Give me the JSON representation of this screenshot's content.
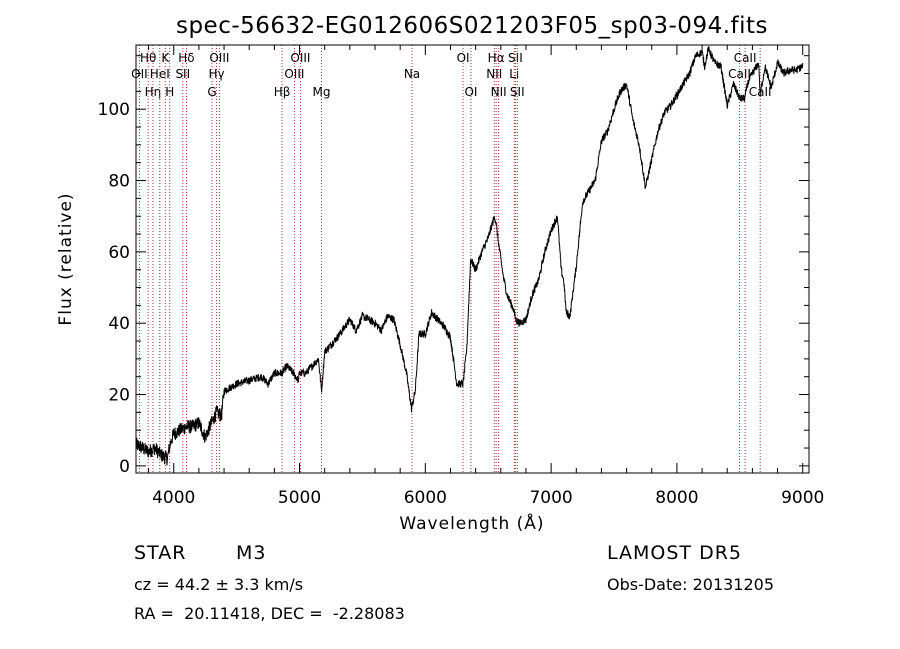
{
  "chart_data": {
    "type": "line",
    "title": "spec-56632-EG012606S021203F05_sp03-094.fits",
    "xlabel": "Wavelength (Å)",
    "ylabel": "Flux (relative)",
    "xlim": [
      3700,
      9050
    ],
    "ylim": [
      -2,
      118
    ],
    "xticks": [
      4000,
      5000,
      6000,
      7000,
      8000,
      9000
    ],
    "yticks": [
      0,
      20,
      40,
      60,
      80,
      100
    ],
    "grid": false,
    "line_color": "#000000",
    "marker_color": "#b03030",
    "series": [
      {
        "x": [
          3700,
          3750,
          3800,
          3850,
          3900,
          3950,
          3970,
          4000,
          4050,
          4100,
          4150,
          4200,
          4250,
          4300,
          4340,
          4380,
          4400,
          4450,
          4500,
          4600,
          4700,
          4750,
          4800,
          4860,
          4900,
          4950,
          4990,
          5000,
          5050,
          5100,
          5150,
          5175,
          5200,
          5300,
          5400,
          5450,
          5500,
          5600,
          5650,
          5700,
          5750,
          5800,
          5850,
          5890,
          5920,
          5950,
          6000,
          6050,
          6100,
          6150,
          6200,
          6250,
          6300,
          6330,
          6360,
          6400,
          6450,
          6500,
          6550,
          6563,
          6580,
          6620,
          6650,
          6700,
          6720,
          6750,
          6800,
          6850,
          6900,
          6950,
          7000,
          7050,
          7080,
          7100,
          7120,
          7150,
          7200,
          7250,
          7300,
          7350,
          7400,
          7450,
          7500,
          7550,
          7600,
          7620,
          7650,
          7700,
          7750,
          7800,
          7850,
          7900,
          7950,
          8000,
          8050,
          8100,
          8150,
          8200,
          8220,
          8250,
          8300,
          8350,
          8400,
          8450,
          8500,
          8540,
          8560,
          8600,
          8650,
          8662,
          8700,
          8750,
          8800,
          8850,
          8900,
          8950,
          9000
        ],
        "y": [
          6,
          5,
          4,
          5,
          3,
          2,
          6,
          9,
          10,
          11,
          11,
          12,
          8,
          12,
          15,
          14,
          21,
          22,
          23,
          24,
          25,
          23,
          26,
          26,
          28,
          26,
          24,
          26,
          26,
          28,
          30,
          21,
          32,
          36,
          41,
          38,
          42,
          40,
          38,
          42,
          41,
          34,
          26,
          16,
          21,
          37,
          37,
          43,
          41,
          39,
          36,
          23,
          23,
          33,
          58,
          55,
          60,
          64,
          70,
          68,
          63,
          53,
          48,
          44,
          41,
          40,
          41,
          48,
          52,
          60,
          66,
          70,
          55,
          52,
          43,
          42,
          56,
          74,
          77,
          80,
          91,
          94,
          100,
          105,
          107,
          103,
          97,
          90,
          78,
          86,
          94,
          99,
          101,
          104,
          107,
          110,
          115,
          116,
          112,
          117,
          113,
          112,
          101,
          107,
          103,
          103,
          107,
          110,
          113,
          104,
          112,
          106,
          113,
          110,
          111,
          111,
          112
        ]
      }
    ],
    "lines": [
      {
        "label": "OII",
        "wavelength": 3727,
        "row": 2
      },
      {
        "label": "Hθ",
        "wavelength": 3797,
        "row": 1
      },
      {
        "label": "Hη",
        "wavelength": 3835,
        "row": 3
      },
      {
        "label": "HeI",
        "wavelength": 3889,
        "row": 2
      },
      {
        "label": "K",
        "wavelength": 3933,
        "row": 1
      },
      {
        "label": "H",
        "wavelength": 3968,
        "row": 3
      },
      {
        "label": "Hδ",
        "wavelength": 4101,
        "row": 1
      },
      {
        "label": "SII",
        "wavelength": 4072,
        "row": 2
      },
      {
        "label": "G",
        "wavelength": 4304,
        "row": 3
      },
      {
        "label": "Hγ",
        "wavelength": 4340,
        "row": 2
      },
      {
        "label": "OIII",
        "wavelength": 4363,
        "row": 1
      },
      {
        "label": "Hβ",
        "wavelength": 4861,
        "row": 3
      },
      {
        "label": "OIII",
        "wavelength": 4959,
        "row": 2
      },
      {
        "label": "OIII",
        "wavelength": 5007,
        "row": 1
      },
      {
        "label": "Mg",
        "wavelength": 5175,
        "row": 3
      },
      {
        "label": "Na",
        "wavelength": 5894,
        "row": 2
      },
      {
        "label": "OI",
        "wavelength": 6300,
        "row": 1
      },
      {
        "label": "OI",
        "wavelength": 6363,
        "row": 3
      },
      {
        "label": "NII",
        "wavelength": 6548,
        "row": 2
      },
      {
        "label": "Hα",
        "wavelength": 6563,
        "row": 1
      },
      {
        "label": "NII",
        "wavelength": 6583,
        "row": 3
      },
      {
        "label": "Li",
        "wavelength": 6707,
        "row": 2
      },
      {
        "label": "SII",
        "wavelength": 6716,
        "row": 1
      },
      {
        "label": "SII",
        "wavelength": 6731,
        "row": 3
      },
      {
        "label": "CaII",
        "wavelength": 8498,
        "row": 2
      },
      {
        "label": "CaII",
        "wavelength": 8542,
        "row": 1
      },
      {
        "label": "CaII",
        "wavelength": 8662,
        "row": 3
      }
    ]
  },
  "info": {
    "class_label": "STAR",
    "subclass": "M3",
    "survey": "LAMOST DR5",
    "cz": "cz = 44.2 ± 3.3 km/s",
    "obs_date": "Obs-Date: 20131205",
    "coords": "RA =  20.11418, DEC =  -2.28083"
  }
}
